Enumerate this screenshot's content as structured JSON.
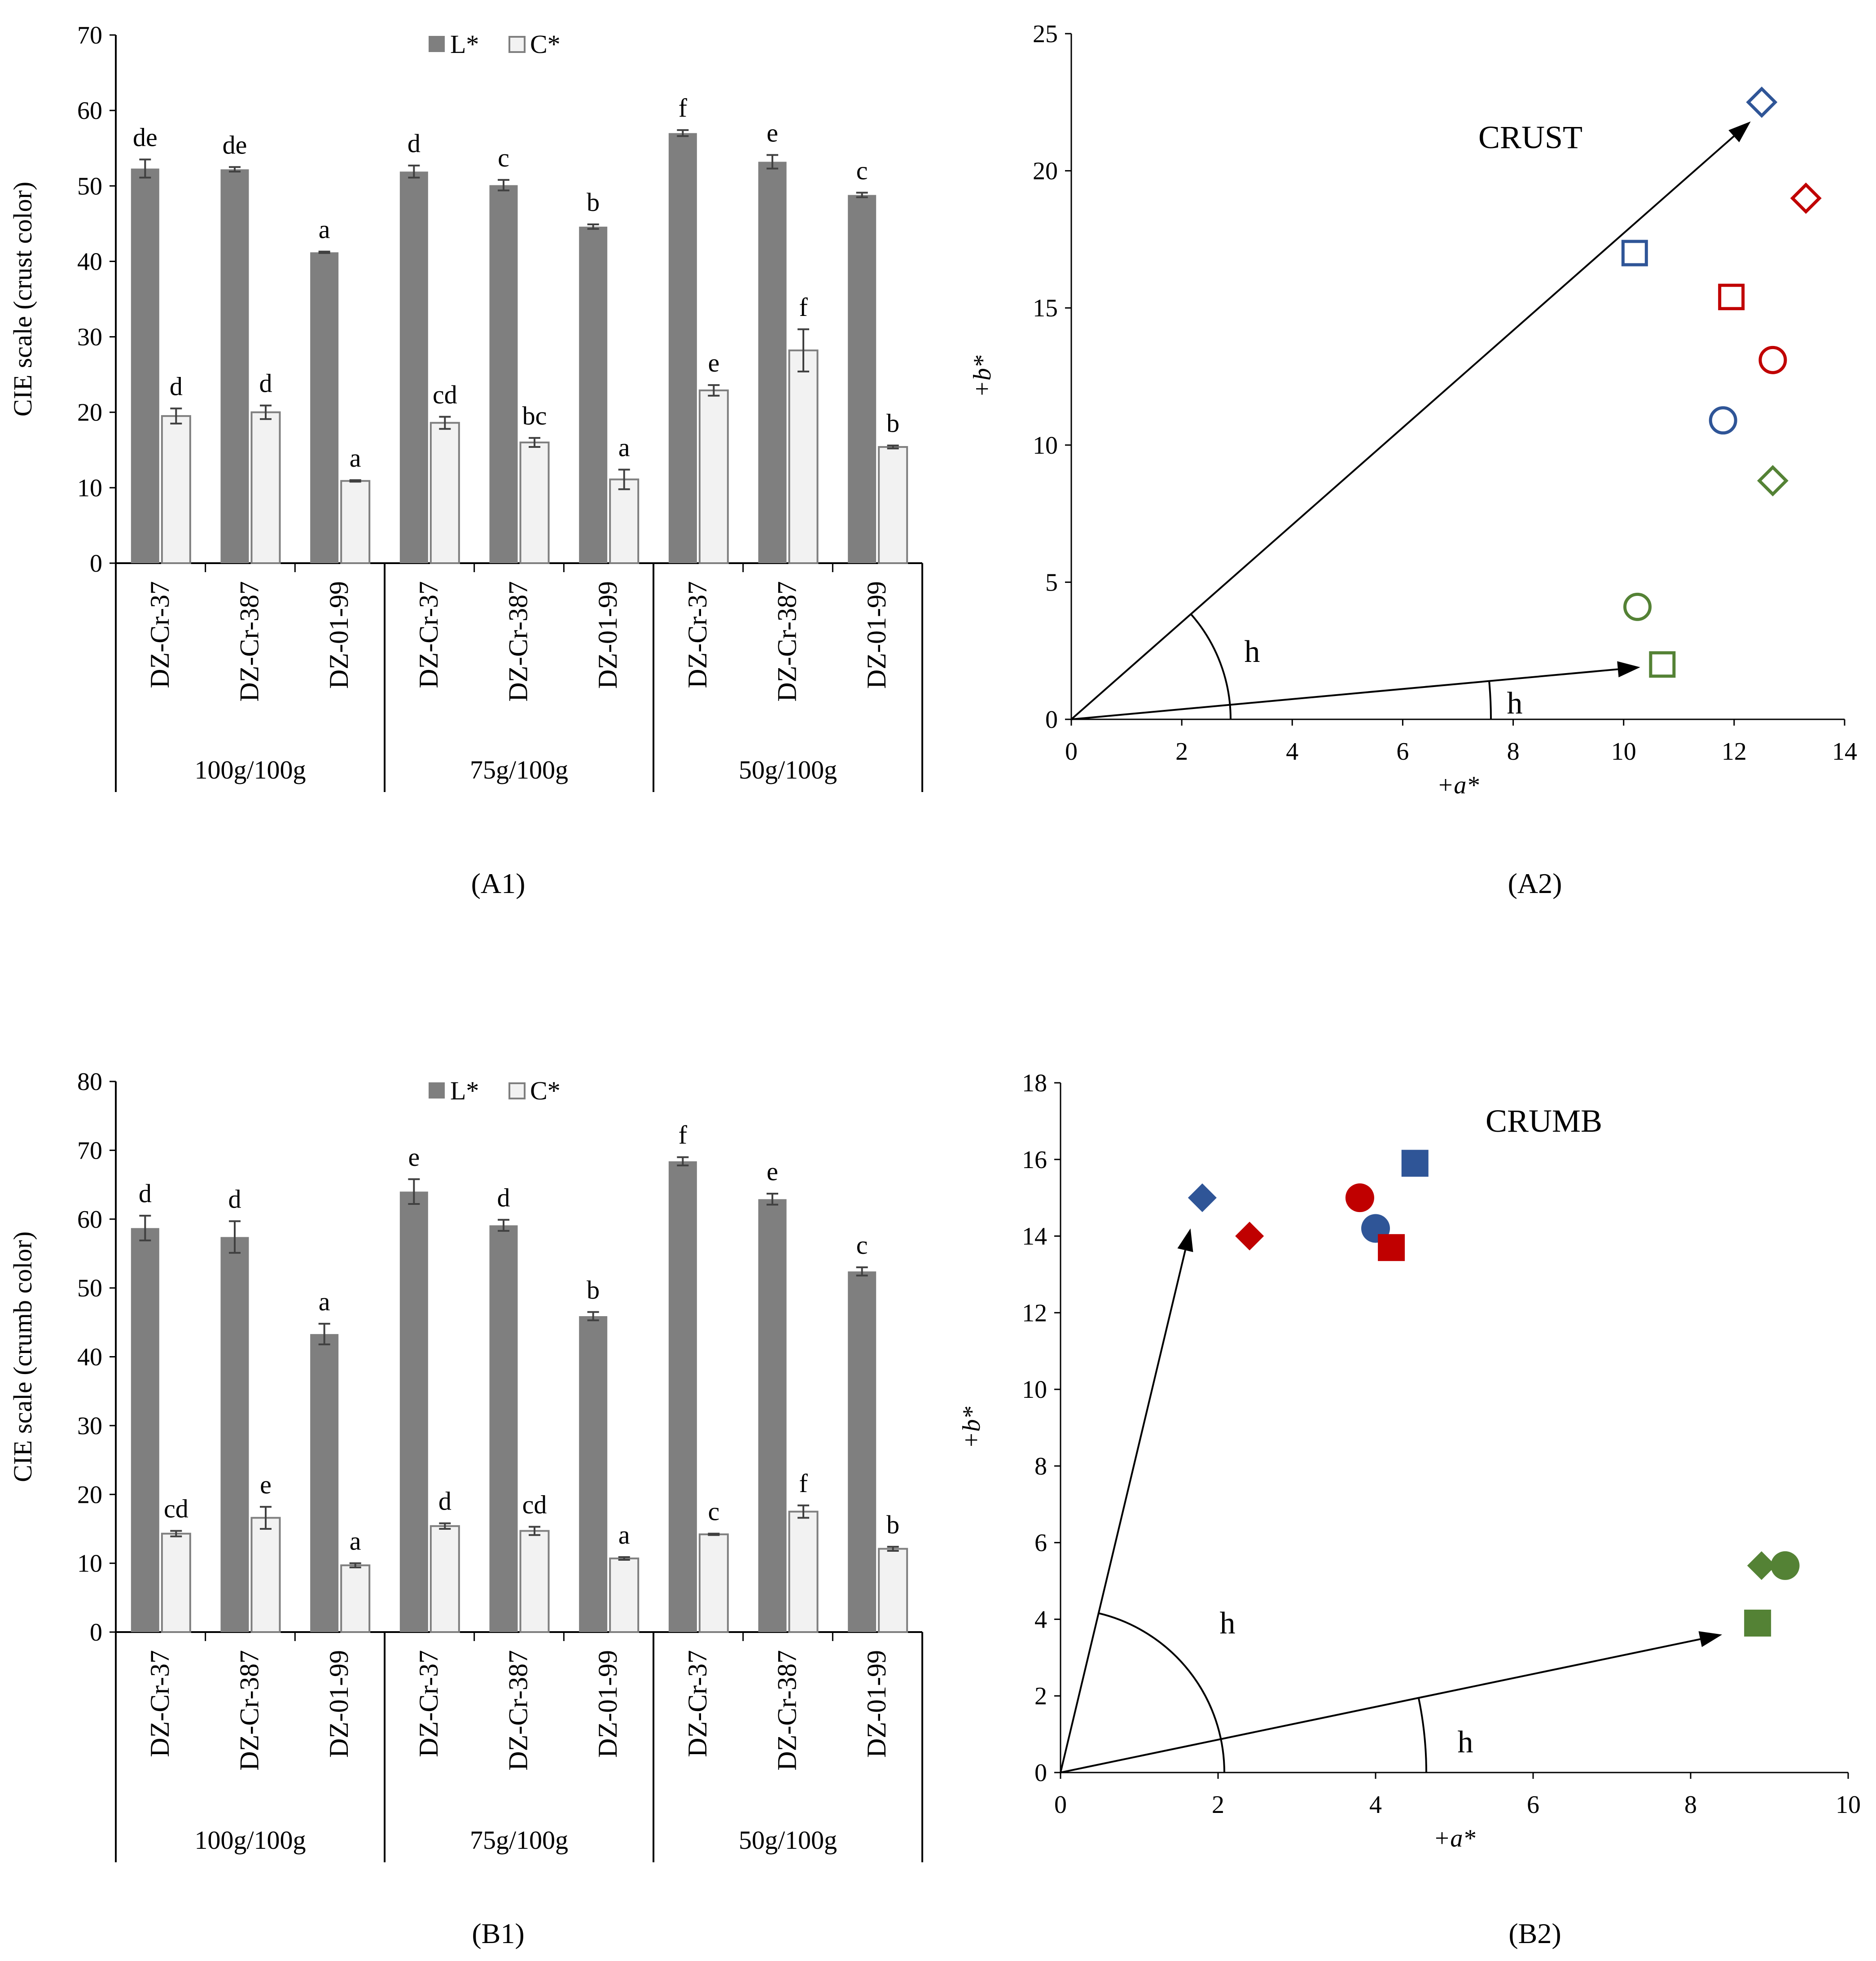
{
  "panels": [
    {
      "id": "A1",
      "text": "(A1)"
    },
    {
      "id": "A2",
      "text": "(A2)"
    },
    {
      "id": "B1",
      "text": "(B1)"
    },
    {
      "id": "B2",
      "text": "(B2)"
    }
  ],
  "chart_data": [
    {
      "id": "A1",
      "type": "bar",
      "ylabel": "CIE scale (crust color)",
      "ylim": [
        0,
        70
      ],
      "yticks": [
        0,
        10,
        20,
        30,
        40,
        50,
        60,
        70
      ],
      "legend": [
        "L*",
        "C*"
      ],
      "legend_position": "top-center",
      "groups": [
        "100g/100g",
        "75g/100g",
        "50g/100g"
      ],
      "categories": [
        "DZ-Cr-37",
        "DZ-Cr-387",
        "DZ-01-99",
        "DZ-Cr-37",
        "DZ-Cr-387",
        "DZ-01-99",
        "DZ-Cr-37",
        "DZ-Cr-387",
        "DZ-01-99"
      ],
      "series": [
        {
          "name": "L*",
          "color": "#7f7f7f",
          "values": [
            52.3,
            52.2,
            41.2,
            51.9,
            50.1,
            44.6,
            57.0,
            53.2,
            48.8
          ],
          "errors": [
            1.2,
            0.3,
            0.1,
            0.8,
            0.7,
            0.3,
            0.4,
            0.9,
            0.3
          ],
          "letters": [
            "de",
            "de",
            "a",
            "d",
            "c",
            "b",
            "f",
            "e",
            "c"
          ]
        },
        {
          "name": "C*",
          "color": "#f2f2f2",
          "values": [
            19.5,
            20.0,
            10.9,
            18.6,
            16.0,
            11.1,
            22.9,
            28.2,
            15.4
          ],
          "errors": [
            1.0,
            0.9,
            0.1,
            0.8,
            0.6,
            1.3,
            0.7,
            2.8,
            0.2
          ],
          "letters": [
            "d",
            "d",
            "a",
            "cd",
            "bc",
            "a",
            "e",
            "f",
            "b"
          ]
        }
      ]
    },
    {
      "id": "A2",
      "type": "scatter",
      "title": "CRUST",
      "xlabel": "+a*",
      "ylabel": "+b*",
      "xlim": [
        0,
        14
      ],
      "ylim": [
        0,
        25
      ],
      "xticks": [
        0,
        2,
        4,
        6,
        8,
        10,
        12,
        14
      ],
      "yticks": [
        0,
        5,
        10,
        15,
        20,
        25
      ],
      "angle_label": "h",
      "arrows": [
        {
          "to": [
            12.3,
            21.8
          ]
        },
        {
          "to": [
            10.3,
            1.9
          ]
        }
      ],
      "points": [
        {
          "x": 12.5,
          "y": 22.5,
          "marker": "diamond",
          "color": "#2f5597",
          "filled": false
        },
        {
          "x": 13.3,
          "y": 19.0,
          "marker": "diamond",
          "color": "#c00000",
          "filled": false
        },
        {
          "x": 10.2,
          "y": 17.0,
          "marker": "square",
          "color": "#2f5597",
          "filled": false
        },
        {
          "x": 11.95,
          "y": 15.4,
          "marker": "square",
          "color": "#c00000",
          "filled": false
        },
        {
          "x": 12.7,
          "y": 13.1,
          "marker": "circle",
          "color": "#c00000",
          "filled": false
        },
        {
          "x": 11.8,
          "y": 10.9,
          "marker": "circle",
          "color": "#2f5597",
          "filled": false
        },
        {
          "x": 12.7,
          "y": 8.7,
          "marker": "diamond",
          "color": "#548235",
          "filled": false
        },
        {
          "x": 10.25,
          "y": 4.1,
          "marker": "circle",
          "color": "#548235",
          "filled": false
        },
        {
          "x": 10.7,
          "y": 2.0,
          "marker": "square",
          "color": "#548235",
          "filled": false
        }
      ]
    },
    {
      "id": "B1",
      "type": "bar",
      "ylabel": "CIE scale (crumb color)",
      "ylim": [
        0,
        80
      ],
      "yticks": [
        0,
        10,
        20,
        30,
        40,
        50,
        60,
        70,
        80
      ],
      "legend": [
        "L*",
        "C*"
      ],
      "legend_position": "top-center",
      "groups": [
        "100g/100g",
        "75g/100g",
        "50g/100g"
      ],
      "categories": [
        "DZ-Cr-37",
        "DZ-Cr-387",
        "DZ-01-99",
        "DZ-Cr-37",
        "DZ-Cr-387",
        "DZ-01-99",
        "DZ-Cr-37",
        "DZ-Cr-387",
        "DZ-01-99"
      ],
      "series": [
        {
          "name": "L*",
          "color": "#7f7f7f",
          "values": [
            58.7,
            57.4,
            43.3,
            64.0,
            59.1,
            45.9,
            68.4,
            62.9,
            52.4
          ],
          "errors": [
            1.8,
            2.3,
            1.5,
            1.8,
            0.8,
            0.6,
            0.6,
            0.8,
            0.6
          ],
          "letters": [
            "d",
            "d",
            "a",
            "e",
            "d",
            "b",
            "f",
            "e",
            "c"
          ]
        },
        {
          "name": "C*",
          "color": "#f2f2f2",
          "values": [
            14.3,
            16.6,
            9.7,
            15.4,
            14.7,
            10.7,
            14.2,
            17.5,
            12.1
          ],
          "errors": [
            0.4,
            1.6,
            0.3,
            0.4,
            0.6,
            0.2,
            0.1,
            0.9,
            0.3
          ],
          "letters": [
            "cd",
            "e",
            "a",
            "d",
            "cd",
            "a",
            "c",
            "f",
            "b"
          ]
        }
      ]
    },
    {
      "id": "B2",
      "type": "scatter",
      "title": "CRUMB",
      "xlabel": "+a*",
      "ylabel": "+b*",
      "xlim": [
        0,
        10
      ],
      "ylim": [
        0,
        18
      ],
      "xticks": [
        0,
        2,
        4,
        6,
        8,
        10
      ],
      "yticks": [
        0,
        2,
        4,
        6,
        8,
        10,
        12,
        14,
        16,
        18
      ],
      "angle_label": "h",
      "arrows": [
        {
          "to": [
            1.65,
            14.2
          ]
        },
        {
          "to": [
            8.4,
            3.6
          ]
        }
      ],
      "points": [
        {
          "x": 1.8,
          "y": 15.0,
          "marker": "diamond",
          "color": "#2f5597",
          "filled": true
        },
        {
          "x": 2.4,
          "y": 14.0,
          "marker": "diamond",
          "color": "#c00000",
          "filled": true
        },
        {
          "x": 3.8,
          "y": 15.0,
          "marker": "circle",
          "color": "#c00000",
          "filled": true
        },
        {
          "x": 4.0,
          "y": 14.2,
          "marker": "circle",
          "color": "#2f5597",
          "filled": true
        },
        {
          "x": 4.2,
          "y": 13.7,
          "marker": "square",
          "color": "#c00000",
          "filled": true
        },
        {
          "x": 4.5,
          "y": 15.9,
          "marker": "square",
          "color": "#2f5597",
          "filled": true
        },
        {
          "x": 8.9,
          "y": 5.4,
          "marker": "diamond",
          "color": "#548235",
          "filled": true
        },
        {
          "x": 9.2,
          "y": 5.4,
          "marker": "circle",
          "color": "#548235",
          "filled": true
        },
        {
          "x": 8.85,
          "y": 3.9,
          "marker": "square",
          "color": "#548235",
          "filled": true
        }
      ]
    }
  ]
}
